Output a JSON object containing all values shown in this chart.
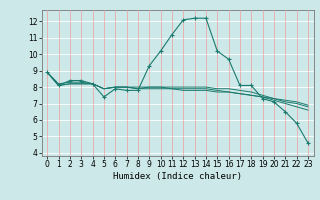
{
  "title": "",
  "xlabel": "Humidex (Indice chaleur)",
  "bg_color": "#cce8e8",
  "grid_color_white": "#ffffff",
  "grid_color_pink": "#e8b0b0",
  "line_color": "#1a7a6e",
  "xlim": [
    -0.5,
    23.5
  ],
  "ylim": [
    3.8,
    12.7
  ],
  "yticks": [
    4,
    5,
    6,
    7,
    8,
    9,
    10,
    11,
    12
  ],
  "xticks": [
    0,
    1,
    2,
    3,
    4,
    5,
    6,
    7,
    8,
    9,
    10,
    11,
    12,
    13,
    14,
    15,
    16,
    17,
    18,
    19,
    20,
    21,
    22,
    23
  ],
  "series": [
    [
      8.9,
      8.1,
      8.4,
      8.4,
      8.2,
      7.4,
      7.9,
      7.8,
      7.8,
      9.3,
      10.2,
      11.2,
      12.1,
      12.2,
      12.2,
      10.2,
      9.7,
      8.1,
      8.1,
      7.3,
      7.1,
      6.5,
      5.8,
      4.6
    ],
    [
      8.9,
      8.1,
      8.2,
      8.2,
      8.2,
      7.9,
      8.0,
      8.0,
      7.9,
      8.0,
      8.0,
      8.0,
      8.0,
      8.0,
      8.0,
      7.9,
      7.9,
      7.8,
      7.7,
      7.5,
      7.3,
      7.1,
      7.0,
      6.8
    ],
    [
      8.9,
      8.1,
      8.2,
      8.2,
      8.2,
      7.9,
      8.0,
      8.0,
      7.9,
      7.9,
      7.9,
      7.9,
      7.8,
      7.8,
      7.8,
      7.7,
      7.7,
      7.6,
      7.5,
      7.4,
      7.2,
      7.0,
      6.8,
      6.6
    ],
    [
      8.9,
      8.2,
      8.3,
      8.3,
      8.2,
      7.9,
      8.0,
      8.0,
      8.0,
      8.0,
      8.0,
      7.9,
      7.9,
      7.9,
      7.9,
      7.8,
      7.7,
      7.6,
      7.5,
      7.4,
      7.3,
      7.2,
      7.1,
      6.9
    ]
  ]
}
